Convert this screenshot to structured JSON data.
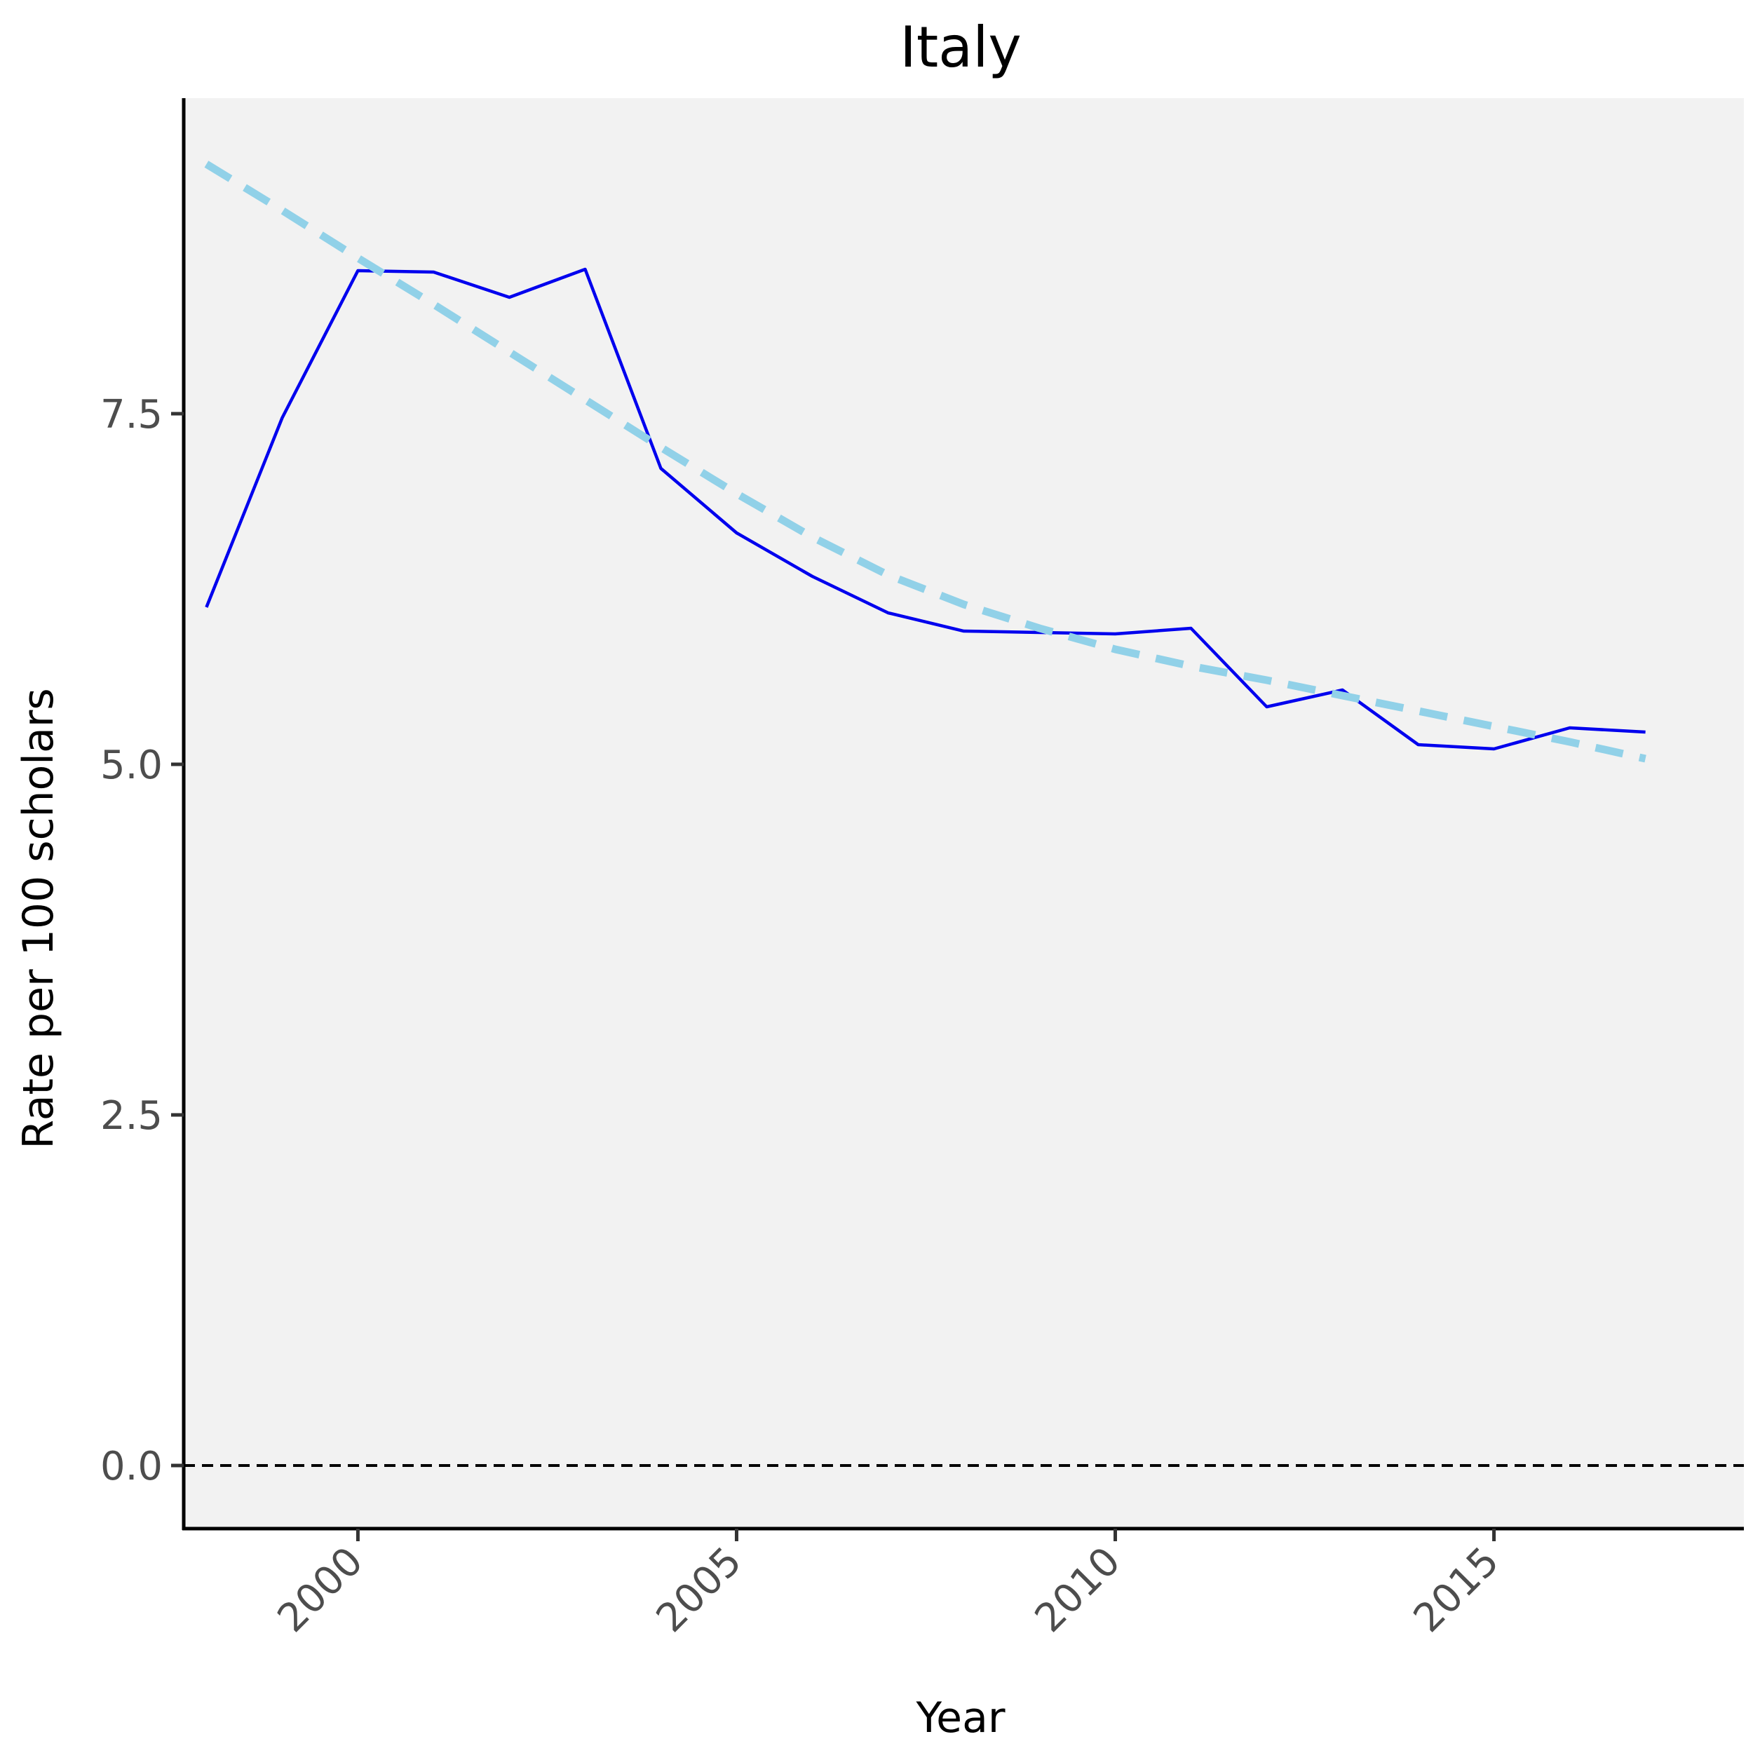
{
  "chart_data": {
    "type": "line",
    "title": "Italy",
    "xlabel": "Year",
    "ylabel": "Rate per 100 scholars",
    "xlim": [
      1997.7,
      2018.3
    ],
    "ylim": [
      -0.45,
      9.75
    ],
    "x_ticks": [
      2000,
      2005,
      2010,
      2015
    ],
    "y_ticks": [
      0.0,
      2.5,
      5.0,
      7.5
    ],
    "x_tick_labels": [
      "2000",
      "2005",
      "2010",
      "2015"
    ],
    "y_tick_labels": [
      "0.0",
      "2.5",
      "5.0",
      "7.5"
    ],
    "grid": false,
    "reference_line": {
      "y": 0.0,
      "style": "dashed",
      "color": "#000000"
    },
    "series": [
      {
        "style": "solid",
        "color": "#0000ee",
        "x": [
          1998,
          1999,
          2000,
          2001,
          2002,
          2003,
          2004,
          2005,
          2006,
          2007,
          2008,
          2009,
          2010,
          2011,
          2012,
          2013,
          2014,
          2015,
          2016,
          2017
        ],
        "y": [
          6.12,
          7.47,
          8.52,
          8.51,
          8.33,
          8.53,
          7.11,
          6.65,
          6.34,
          6.08,
          5.95,
          5.94,
          5.93,
          5.97,
          5.41,
          5.53,
          5.14,
          5.11,
          5.26,
          5.23
        ]
      },
      {
        "style": "dashed",
        "color": "#91d1e8",
        "x": [
          1998,
          1999,
          2000,
          2001,
          2002,
          2003,
          2004,
          2005,
          2006,
          2007,
          2008,
          2009,
          2010,
          2011,
          2012,
          2013,
          2014,
          2015,
          2016,
          2017
        ],
        "y": [
          9.28,
          8.95,
          8.61,
          8.28,
          7.94,
          7.6,
          7.26,
          6.93,
          6.62,
          6.35,
          6.14,
          5.97,
          5.82,
          5.7,
          5.6,
          5.49,
          5.38,
          5.27,
          5.16,
          5.04
        ]
      }
    ]
  },
  "colors": {
    "panel_background": "#f2f2f2",
    "axis_line": "#000000",
    "tick_label": "#4d4d4d"
  }
}
